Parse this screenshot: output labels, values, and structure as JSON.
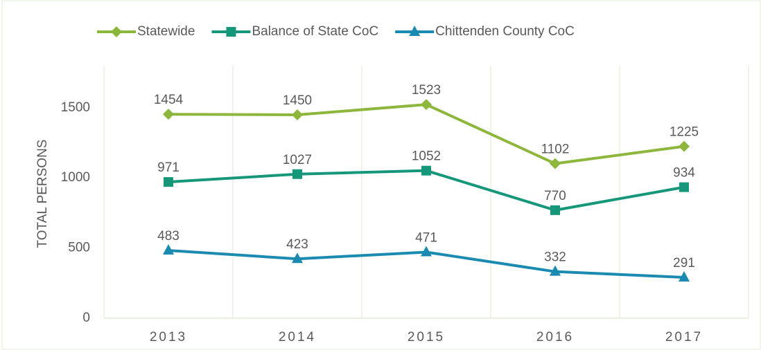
{
  "chart_data": {
    "type": "line",
    "y_label": "TOTAL PERSONS",
    "categories": [
      "2013",
      "2014",
      "2015",
      "2016",
      "2017"
    ],
    "series": [
      {
        "name": "Statewide",
        "color": "#8db63c",
        "marker": "diamond",
        "values": [
          1454,
          1450,
          1523,
          1102,
          1225
        ]
      },
      {
        "name": "Balance of State CoC",
        "color": "#17977a",
        "marker": "square",
        "values": [
          971,
          1027,
          1052,
          770,
          934
        ]
      },
      {
        "name": "Chittenden County CoC",
        "color": "#1b8ab0",
        "marker": "triangle",
        "values": [
          483,
          423,
          471,
          332,
          291
        ]
      }
    ],
    "ylim": [
      0,
      1800
    ],
    "yticks": [
      0,
      500,
      1000,
      1500
    ],
    "grid": "vertical",
    "legend": "top"
  }
}
